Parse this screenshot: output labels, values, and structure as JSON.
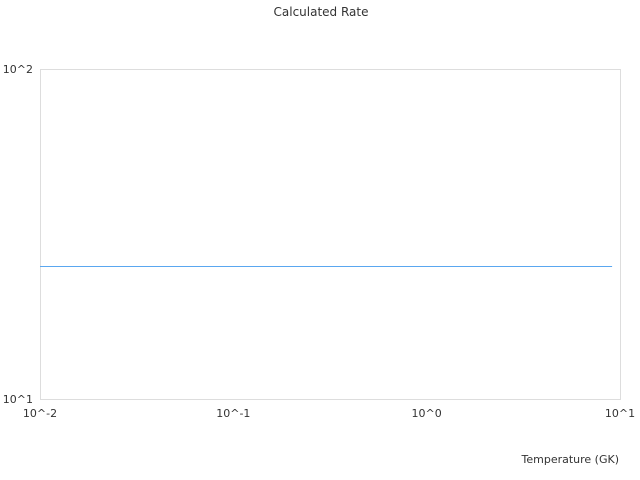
{
  "chart_data": {
    "type": "line",
    "title": "Calculated Rate",
    "xlabel": "Temperature (GK)",
    "ylabel": "",
    "xscale": "log",
    "yscale": "log",
    "xlim": [
      0.01,
      10
    ],
    "ylim": [
      10,
      100
    ],
    "x_ticks": [
      {
        "value": 0.01,
        "label": "10^-2"
      },
      {
        "value": 0.1,
        "label": "10^-1"
      },
      {
        "value": 1,
        "label": "10^0"
      },
      {
        "value": 10,
        "label": "10^1"
      }
    ],
    "y_ticks": [
      {
        "value": 10,
        "label": "10^1"
      },
      {
        "value": 100,
        "label": "10^2"
      }
    ],
    "grid": false,
    "series": [
      {
        "x": [
          0.01,
          9.1
        ],
        "y": [
          25.3,
          25.3
        ],
        "color": "#5aa7f0"
      }
    ]
  }
}
